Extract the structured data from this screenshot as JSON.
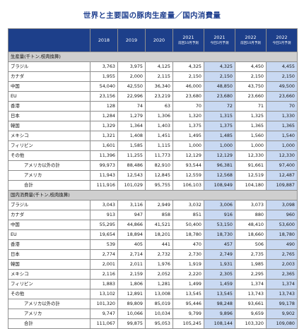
{
  "title": "世界と主要国の豚肉生産量／国内消費量",
  "headers": [
    {
      "main": "",
      "sub": ""
    },
    {
      "main": "2018",
      "sub": ""
    },
    {
      "main": "2019",
      "sub": ""
    },
    {
      "main": "2020",
      "sub": ""
    },
    {
      "main": "2021",
      "sub": "前回10月予測"
    },
    {
      "main": "2021",
      "sub": "今回1月予測"
    },
    {
      "main": "2022",
      "sub": "前回10月予測"
    },
    {
      "main": "2022",
      "sub": "今回1月予測"
    }
  ],
  "sections": [
    {
      "label": "生産量(千トン,枝肉換算)",
      "rows": [
        {
          "label": "ブラジル",
          "indent": false,
          "values": [
            "3,763",
            "3,975",
            "4,125",
            "4,325",
            "4,325",
            "4,450",
            "4,455"
          ]
        },
        {
          "label": "カナダ",
          "indent": false,
          "values": [
            "1,955",
            "2,000",
            "2,115",
            "2,150",
            "2,150",
            "2,150",
            "2,150"
          ]
        },
        {
          "label": "中国",
          "indent": false,
          "values": [
            "54,040",
            "42,550",
            "36,340",
            "46,000",
            "48,850",
            "43,750",
            "49,500"
          ]
        },
        {
          "label": "EU",
          "indent": false,
          "values": [
            "23,156",
            "22,996",
            "23,219",
            "23,680",
            "23,680",
            "23,660",
            "23,660"
          ]
        },
        {
          "label": "香港",
          "indent": false,
          "values": [
            "128",
            "74",
            "63",
            "70",
            "72",
            "71",
            "70"
          ]
        },
        {
          "label": "日本",
          "indent": false,
          "values": [
            "1,284",
            "1,279",
            "1,306",
            "1,320",
            "1,315",
            "1,325",
            "1,330"
          ]
        },
        {
          "label": "韓国",
          "indent": false,
          "values": [
            "1,329",
            "1,364",
            "1,403",
            "1,375",
            "1,375",
            "1,365",
            "1,365"
          ]
        },
        {
          "label": "メキシコ",
          "indent": false,
          "values": [
            "1,321",
            "1,408",
            "1,451",
            "1,495",
            "1,485",
            "1,560",
            "1,540"
          ]
        },
        {
          "label": "フィリピン",
          "indent": false,
          "values": [
            "1,601",
            "1,585",
            "1,115",
            "1,000",
            "1,000",
            "1,000",
            "1,000"
          ]
        },
        {
          "label": "その他",
          "indent": false,
          "values": [
            "11,396",
            "11,255",
            "11,773",
            "12,129",
            "12,129",
            "12,330",
            "12,330"
          ]
        },
        {
          "label": "アメリカ以外の計",
          "indent": true,
          "values": [
            "99,973",
            "88,486",
            "82,910",
            "93,544",
            "96,381",
            "91,661",
            "97,400"
          ]
        },
        {
          "label": "アメリカ",
          "indent": true,
          "values": [
            "11,943",
            "12,543",
            "12,845",
            "12,559",
            "12,568",
            "12,519",
            "12,487"
          ]
        },
        {
          "label": "合計",
          "indent": true,
          "values": [
            "111,916",
            "101,029",
            "95,755",
            "106,103",
            "108,949",
            "104,180",
            "109,887"
          ]
        }
      ]
    },
    {
      "label": "国内消費量(千トン,枝肉換算)",
      "rows": [
        {
          "label": "ブラジル",
          "indent": false,
          "values": [
            "3,043",
            "3,116",
            "2,949",
            "3,032",
            "3,006",
            "3,073",
            "3,098"
          ]
        },
        {
          "label": "カナダ",
          "indent": false,
          "values": [
            "913",
            "947",
            "858",
            "851",
            "916",
            "880",
            "960"
          ]
        },
        {
          "label": "中国",
          "indent": false,
          "values": [
            "55,295",
            "44,866",
            "41,521",
            "50,400",
            "53,150",
            "48,410",
            "53,600"
          ]
        },
        {
          "label": "EU",
          "indent": false,
          "values": [
            "19,654",
            "18,894",
            "18,201",
            "18,780",
            "18,730",
            "18,660",
            "18,780"
          ]
        },
        {
          "label": "香港",
          "indent": false,
          "values": [
            "539",
            "405",
            "441",
            "470",
            "457",
            "506",
            "490"
          ]
        },
        {
          "label": "日本",
          "indent": false,
          "values": [
            "2,774",
            "2,714",
            "2,732",
            "2,730",
            "2,749",
            "2,735",
            "2,765"
          ]
        },
        {
          "label": "韓国",
          "indent": false,
          "values": [
            "2,001",
            "2,011",
            "1,976",
            "1,919",
            "1,931",
            "1,985",
            "2,003"
          ]
        },
        {
          "label": "メキシコ",
          "indent": false,
          "values": [
            "2,116",
            "2,159",
            "2,052",
            "2,220",
            "2,305",
            "2,295",
            "2,365"
          ]
        },
        {
          "label": "フィリピン",
          "indent": false,
          "values": [
            "1,883",
            "1,806",
            "1,281",
            "1,499",
            "1,459",
            "1,374",
            "1,374"
          ]
        },
        {
          "label": "その他",
          "indent": false,
          "values": [
            "13,102",
            "12,891",
            "13,008",
            "13,545",
            "13,545",
            "13,743",
            "13,743"
          ]
        },
        {
          "label": "アメリカ以外の計",
          "indent": true,
          "values": [
            "101,320",
            "89,809",
            "85,019",
            "95,446",
            "98,248",
            "93,661",
            "99,178"
          ]
        },
        {
          "label": "アメリカ",
          "indent": true,
          "values": [
            "9,747",
            "10,066",
            "10,034",
            "9,799",
            "9,896",
            "9,659",
            "9,902"
          ]
        },
        {
          "label": "合計",
          "indent": true,
          "values": [
            "111,067",
            "99,875",
            "95,053",
            "105,245",
            "108,144",
            "103,320",
            "109,080"
          ]
        }
      ]
    }
  ],
  "highlight_color": "#c9d9f2",
  "header_color": "#1d3f8a",
  "section_color": "#cfcfcf",
  "title_color": "#1f3f8f"
}
